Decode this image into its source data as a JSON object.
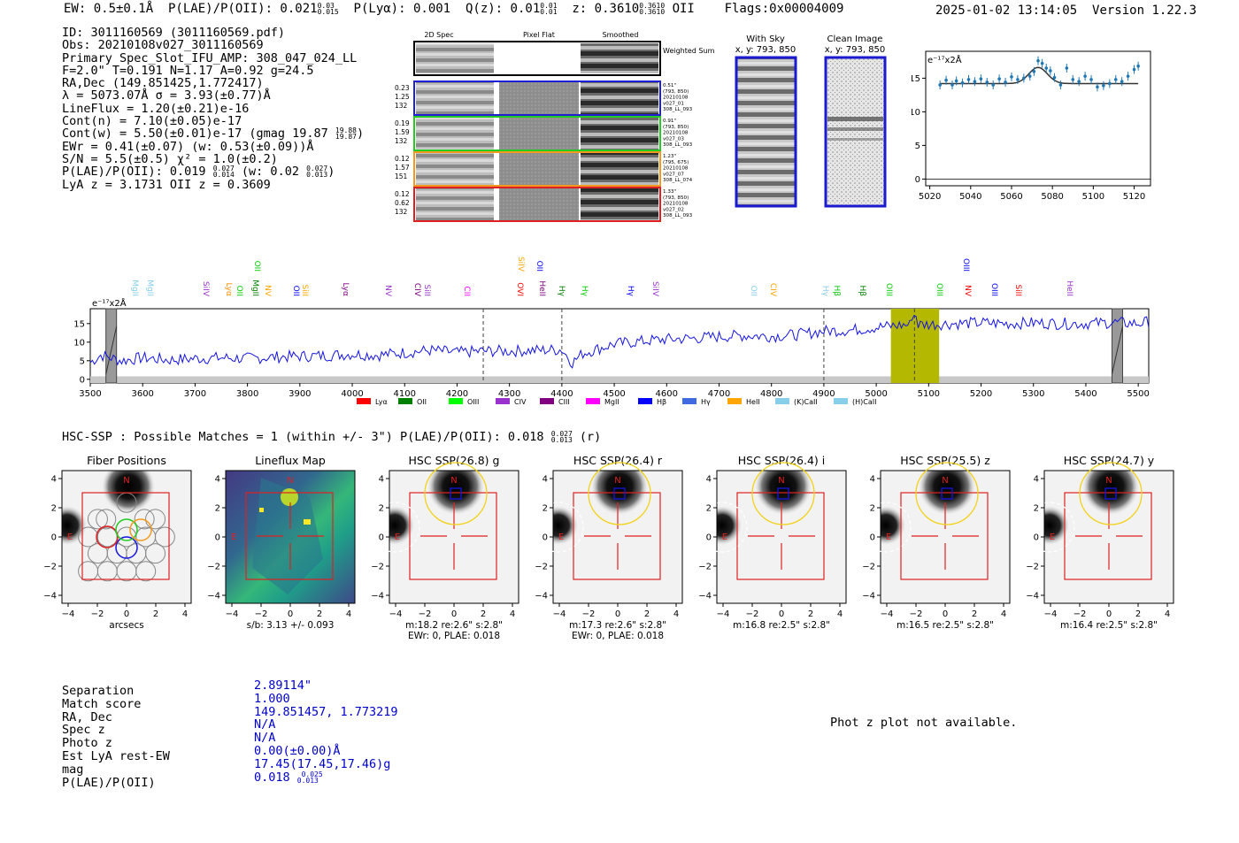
{
  "header": {
    "line": "EW: 0.5±0.1Å  P(LAE)/P(OII): 0.021",
    "sup1_top": "0.03",
    "sup1_bot": "0.015",
    "line2": "  P(Lyα): 0.001  Q(z): 0.01",
    "sup2_top": "0.01",
    "sup2_bot": "0.01",
    "line3": "  z: 0.3610",
    "sup3_top": "0.3610",
    "sup3_bot": "0.3610",
    "line4": " OII    Flags:0x00004009",
    "datetime": "2025-01-02 13:14:05",
    "version": "Version 1.22.3"
  },
  "info": {
    "id": "ID: 3011160569 (3011160569.pdf)",
    "obs": "Obs: 20210108v027_3011160569",
    "primary": "Primary Spec_Slot_IFU_AMP: 308_047_024_LL",
    "fiber": "F=2.0\"  T=0.191  N=1.17  A=0.92  g=24.5",
    "radec": "RA,Dec (149.851425,1.772417)",
    "lambda": "λ = 5073.07Å  σ = 3.93(±0.77)Å",
    "lineflux": "LineFlux = 1.20(±0.21)e-16",
    "contn": "Cont(n) = 7.10(±0.05)e-17",
    "contw": "Cont(w) = 5.50(±0.01)e-17 (gmag 19.87",
    "contw_top": "19.88",
    "contw_bot": "19.87",
    "contw_end": ")",
    "ewr": "EWr = 0.41(±0.07) (w: 0.53(±0.09))Å",
    "sn": "S/N = 5.5(±0.5)  χ² = 1.0(±0.2)",
    "plae": "P(LAE)/P(OII): 0.019",
    "plae_top": "0.027",
    "plae_bot": "0.014",
    "plae_w": " (w: 0.02",
    "plae_w_top": "0.027",
    "plae_w_bot": "0.013",
    "plae_w_end": ")",
    "lyaz": "LyA z = 3.1731   OII z = 0.3609"
  },
  "cutouts": {
    "col_labels": [
      "2D Spec",
      "Pixel Flat",
      "Smoothed"
    ],
    "weighted_label": "Weighted Sum",
    "rows": [
      {
        "left": [
          "0.23",
          "1.25",
          "132"
        ],
        "right": [
          "0.51\"",
          "(793, 850)",
          "20210108",
          "v027_01",
          "308_LL_093"
        ],
        "color": "#1f1fd6"
      },
      {
        "left": [
          "0.19",
          "1.59",
          "132"
        ],
        "right": [
          "0.91\"",
          "(793, 850)",
          "20210108",
          "v027_03",
          "308_LL_093"
        ],
        "color": "#22cc22"
      },
      {
        "left": [
          "0.12",
          "1.57",
          "151"
        ],
        "right": [
          "1.23\"",
          "(795, 675)",
          "20210108",
          "v027_07",
          "308_LL_074"
        ],
        "color": "#f29a1f"
      },
      {
        "left": [
          "0.12",
          "0.62",
          "132"
        ],
        "right": [
          "1.33\"",
          "(793, 850)",
          "20210108",
          "v027_02",
          "308_LL_093"
        ],
        "color": "#e02020"
      }
    ],
    "with_sky_title": "With Sky",
    "with_sky_sub": "x, y: 793, 850",
    "clean_title": "Clean Image",
    "clean_sub": "x, y: 793, 850"
  },
  "zoom_chart": {
    "unit_label": "e⁻¹⁷x2Å",
    "x_ticks": [
      "5020",
      "5040",
      "5060",
      "5080",
      "5100",
      "5120"
    ],
    "y_ticks": [
      "0",
      "5",
      "10",
      "15"
    ]
  },
  "full_spectrum": {
    "unit_label": "e⁻¹⁷x2Å",
    "x_ticks": [
      "3500",
      "3600",
      "3700",
      "3800",
      "3900",
      "4000",
      "4100",
      "4200",
      "4300",
      "4400",
      "4500",
      "4600",
      "4700",
      "4800",
      "4900",
      "5000",
      "5100",
      "5200",
      "5300",
      "5400",
      "5500"
    ],
    "y_ticks": [
      "0",
      "5",
      "10",
      "15"
    ],
    "legend": [
      {
        "label": "Lyα",
        "color": "#ff0000"
      },
      {
        "label": "OII",
        "color": "#008000"
      },
      {
        "label": "OIII",
        "color": "#00ff00"
      },
      {
        "label": "CIV",
        "color": "#9932cc"
      },
      {
        "label": "CIII",
        "color": "#800080"
      },
      {
        "label": "MgII",
        "color": "#ff00ff"
      },
      {
        "label": "Hβ",
        "color": "#0000ff"
      },
      {
        "label": "Hγ",
        "color": "#4169e1"
      },
      {
        "label": "HeII",
        "color": "#ffa500"
      },
      {
        "label": "(K)CaII",
        "color": "#87ceeb"
      },
      {
        "label": "(H)CaII",
        "color": "#87ceeb"
      }
    ],
    "line_labels": [
      {
        "t": "MgII",
        "c": "#87ceeb"
      },
      {
        "t": "MgII",
        "c": "#87ceeb"
      },
      {
        "t": "SiIV",
        "c": "#9932cc"
      },
      {
        "t": "Lyα",
        "c": "#ff8c00"
      },
      {
        "t": "OII",
        "c": "#00cc00"
      },
      {
        "t": "MgII",
        "c": "#008000"
      },
      {
        "t": "NV",
        "c": "#ffa500"
      },
      {
        "t": "OII",
        "c": "#0000ff"
      },
      {
        "t": "SiII",
        "c": "#ffa500"
      },
      {
        "t": "Lyα",
        "c": "#800080"
      },
      {
        "t": "NV",
        "c": "#9932cc"
      },
      {
        "t": "CIV",
        "c": "#800080"
      },
      {
        "t": "SiII",
        "c": "#9932cc"
      },
      {
        "t": "CII",
        "c": "#ff00ff"
      },
      {
        "t": "OVI",
        "c": "#ff0000"
      },
      {
        "t": "HeII",
        "c": "#800080"
      },
      {
        "t": "Hγ",
        "c": "#008000"
      },
      {
        "t": "Hγ",
        "c": "#00cc00"
      },
      {
        "t": "Hγ",
        "c": "#0000ff"
      },
      {
        "t": "SiIV",
        "c": "#9932cc"
      },
      {
        "t": "OII",
        "c": "#87ceeb"
      },
      {
        "t": "CIV",
        "c": "#ffa500"
      },
      {
        "t": "Hγ",
        "c": "#87ceeb"
      },
      {
        "t": "Hβ",
        "c": "#00cc00"
      },
      {
        "t": "Hβ",
        "c": "#008000"
      },
      {
        "t": "OIII",
        "c": "#00cc00"
      },
      {
        "t": "OIII",
        "c": "#00cc00"
      },
      {
        "t": "NV",
        "c": "#ff0000"
      },
      {
        "t": "OIII",
        "c": "#0000ff"
      },
      {
        "t": "SiII",
        "c": "#ff0000"
      },
      {
        "t": "HeII",
        "c": "#9932cc"
      }
    ],
    "upper_labels": [
      {
        "t": "OII",
        "c": "#00cc00"
      },
      {
        "t": "SiIV",
        "c": "#ffa500"
      },
      {
        "t": "OII",
        "c": "#0000ff"
      },
      {
        "t": "OIII",
        "c": "#0000ff"
      }
    ]
  },
  "hsc": {
    "header": "HSC-SSP : Possible Matches = 1 (within +/- 3\")  P(LAE)/P(OII): 0.018",
    "header_top": "0.027",
    "header_bot": "0.013",
    "header_end": " (r)",
    "panels": [
      {
        "title": "Fiber Positions",
        "xlabel": "arcsecs",
        "line2": ""
      },
      {
        "title": "Lineflux Map",
        "xlabel": "s/b: 3.13 +/- 0.093",
        "line2": ""
      },
      {
        "title": "HSC SSP(26.8) g",
        "xlabel": "m:18.2  re:2.6\"  s:2.8\"",
        "line2": "EWr: 0, PLAE: 0.018"
      },
      {
        "title": "HSC SSP(26.4) r",
        "xlabel": "m:17.3  re:2.6\"  s:2.8\"",
        "line2": "EWr: 0, PLAE: 0.018"
      },
      {
        "title": "HSC SSP(26.4) i",
        "xlabel": "m:16.8  re:2.5\"  s:2.8\"",
        "line2": ""
      },
      {
        "title": "HSC SSP(25.5) z",
        "xlabel": "m:16.5  re:2.5\"  s:2.8\"",
        "line2": ""
      },
      {
        "title": "HSC SSP(24.7) y",
        "xlabel": "m:16.4  re:2.5\"  s:2.8\"",
        "line2": ""
      }
    ],
    "axis_ticks": [
      "−4",
      "−2",
      "0",
      "2",
      "4"
    ],
    "north": "N",
    "east": "E"
  },
  "match": {
    "labels": [
      "Separation",
      "Match score",
      "RA, Dec",
      "Spec z",
      "Photo z",
      "Est LyA rest-EW",
      "mag",
      "P(LAE)/P(OII)"
    ],
    "values": [
      "2.89114\"",
      "1.000",
      "149.851457, 1.773219",
      "N/A",
      "N/A",
      "0.00(±0.00)Å",
      "17.45(17.45,17.46)g",
      "0.018"
    ],
    "plae_top": "0.025",
    "plae_bot": "0.013",
    "phot_z": "Phot z plot not available."
  },
  "chart_data": [
    {
      "type": "scatter",
      "title": "",
      "xlabel": "",
      "ylabel": "e-17x2Å",
      "xlim": [
        5018,
        5128
      ],
      "ylim": [
        -1,
        19
      ],
      "x": [
        5025,
        5028,
        5031,
        5033,
        5036,
        5039,
        5042,
        5045,
        5048,
        5051,
        5054,
        5057,
        5060,
        5063,
        5066,
        5069,
        5071,
        5073,
        5075,
        5077,
        5079,
        5081,
        5084,
        5087,
        5090,
        5093,
        5096,
        5099,
        5102,
        5105,
        5108,
        5111,
        5114,
        5117,
        5120,
        5122
      ],
      "y": [
        14.0,
        14.7,
        14.0,
        14.6,
        14.3,
        14.8,
        14.5,
        14.9,
        14.4,
        14.0,
        14.9,
        14.4,
        15.2,
        14.8,
        15.0,
        15.3,
        16.0,
        17.6,
        17.2,
        16.5,
        16.1,
        15.1,
        14.0,
        16.5,
        14.8,
        14.5,
        15.3,
        14.8,
        13.7,
        13.9,
        14.2,
        14.8,
        14.5,
        15.3,
        16.3,
        16.8
      ],
      "model": {
        "continuum": 14.2,
        "peak": 16.6,
        "center": 5073,
        "sigma": 4.5
      }
    },
    {
      "type": "line",
      "title": "",
      "xlabel": "",
      "ylabel": "e-17x2Å",
      "xlim": [
        3500,
        5520
      ],
      "ylim": [
        -1,
        19
      ],
      "anchors_x": [
        3500,
        3520,
        3560,
        3600,
        3650,
        3700,
        3750,
        3800,
        3850,
        3900,
        3950,
        4000,
        4050,
        4100,
        4150,
        4200,
        4250,
        4300,
        4350,
        4400,
        4420,
        4440,
        4500,
        4550,
        4600,
        4650,
        4700,
        4750,
        4800,
        4850,
        4900,
        4950,
        5000,
        5050,
        5100,
        5150,
        5200,
        5250,
        5300,
        5350,
        5400,
        5450,
        5500,
        5520
      ],
      "anchors_y": [
        4.5,
        6.5,
        5.0,
        5.8,
        5.2,
        5.6,
        5.8,
        5.6,
        6.0,
        6.2,
        6.4,
        6.8,
        6.5,
        7.2,
        7.8,
        7.2,
        7.6,
        7.6,
        7.8,
        8.0,
        4.5,
        7.0,
        9.5,
        10.2,
        10.8,
        11.0,
        11.5,
        11.8,
        11.6,
        12.0,
        13.0,
        13.2,
        14.0,
        14.6,
        14.8,
        15.0,
        15.2,
        15.0,
        15.2,
        15.0,
        15.0,
        15.3,
        15.0,
        15.5
      ],
      "emission_band": [
        5028,
        5120
      ],
      "markers": [
        4250,
        4400,
        4900,
        5073
      ],
      "masked": [
        3540,
        5460
      ]
    }
  ]
}
